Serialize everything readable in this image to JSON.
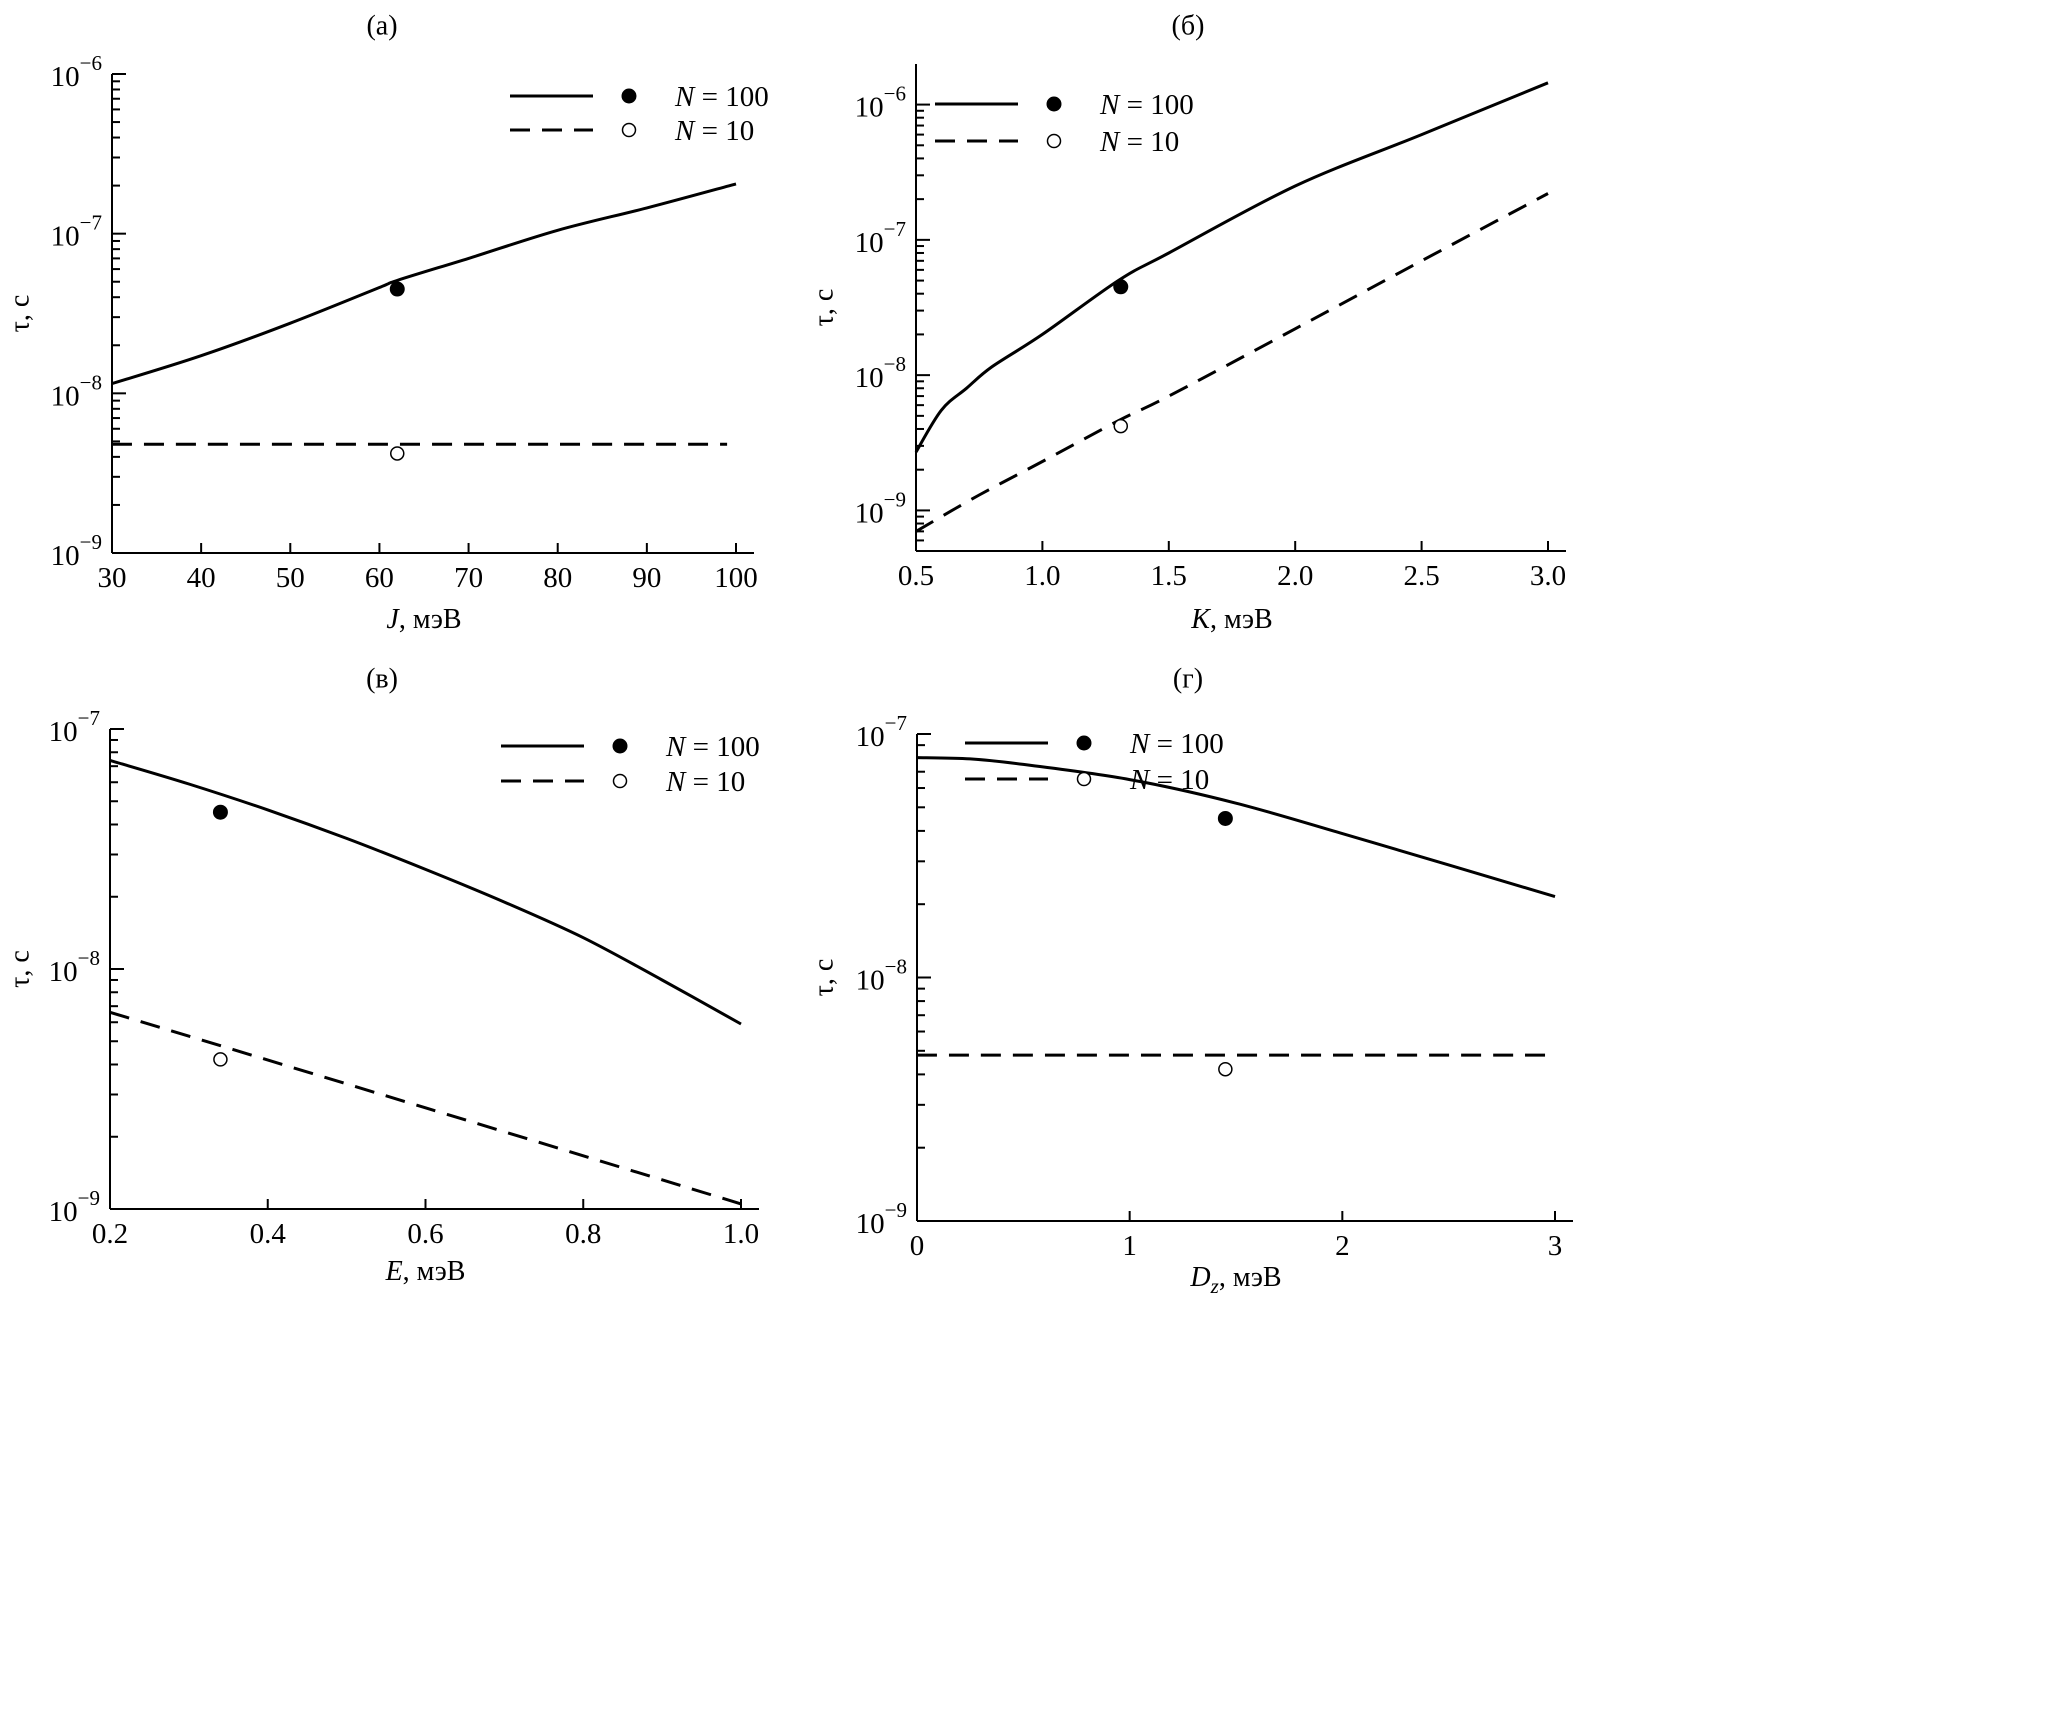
{
  "figure": {
    "legend": {
      "n100": "N = 100",
      "n10": "N = 10"
    },
    "unit_suffix": ", мэВ"
  },
  "chart_data": [
    {
      "id": "a",
      "type": "line",
      "panel_label": "(а)",
      "title": "",
      "xlabel": "J, мэВ",
      "xlabel_var": "J",
      "xlabel_sub": "",
      "ylabel": "τ, с",
      "xlim": [
        30,
        100
      ],
      "ylim_log10": [
        -9,
        -6
      ],
      "ylog": true,
      "xticks": [
        30,
        40,
        50,
        60,
        70,
        80,
        90,
        100
      ],
      "xtick_labels": [
        "30",
        "40",
        "50",
        "60",
        "70",
        "80",
        "90",
        "100"
      ],
      "ytick_exponents": [
        -9,
        -8,
        -7,
        -6
      ],
      "legend_position": "top-right",
      "series": [
        {
          "name": "N = 100",
          "style": "solid",
          "x": [
            30,
            40,
            50,
            60,
            62,
            70,
            80,
            90,
            100
          ],
          "y": [
            1.15e-08,
            1.72e-08,
            2.75e-08,
            4.6e-08,
            5.1e-08,
            7e-08,
            1.05e-07,
            1.45e-07,
            2.05e-07
          ]
        },
        {
          "name": "N = 10",
          "style": "dashed",
          "x": [
            30,
            99
          ],
          "y": [
            4.8e-09,
            4.8e-09
          ]
        }
      ],
      "points": [
        {
          "name": "N = 100",
          "marker": "filled",
          "x": 62,
          "y": 4.5e-08
        },
        {
          "name": "N = 10",
          "marker": "open",
          "x": 62,
          "y": 4.2e-09
        }
      ]
    },
    {
      "id": "b",
      "type": "line",
      "panel_label": "(б)",
      "title": "",
      "xlabel": "K, мэВ",
      "xlabel_var": "K",
      "xlabel_sub": "",
      "ylabel": "τ, с",
      "xlim": [
        0.5,
        3.0
      ],
      "ylim_log10": [
        -9.3,
        -5.7
      ],
      "ylog": true,
      "xticks": [
        0.5,
        1.0,
        1.5,
        2.0,
        2.5,
        3.0
      ],
      "xtick_labels": [
        "0.5",
        "1.0",
        "1.5",
        "2.0",
        "2.5",
        "3.0"
      ],
      "ytick_exponents": [
        -9,
        -8,
        -7,
        -6
      ],
      "legend_position": "top-left",
      "series": [
        {
          "name": "N = 100",
          "style": "solid",
          "x": [
            0.5,
            0.6,
            0.7,
            0.8,
            1.0,
            1.3,
            1.5,
            2.0,
            2.5,
            3.0
          ],
          "y": [
            2.7e-09,
            5.5e-09,
            8e-09,
            1.15e-08,
            2e-08,
            5e-08,
            8e-08,
            2.5e-07,
            6e-07,
            1.45e-06
          ]
        },
        {
          "name": "N = 10",
          "style": "dashed",
          "x": [
            0.5,
            0.75,
            1.0,
            1.3,
            1.5,
            2.0,
            2.5,
            3.0
          ],
          "y": [
            7e-10,
            1.3e-09,
            2.3e-09,
            4.6e-09,
            7e-09,
            2.2e-08,
            7e-08,
            2.2e-07
          ]
        }
      ],
      "points": [
        {
          "name": "N = 100",
          "marker": "filled",
          "x": 1.31,
          "y": 4.5e-08
        },
        {
          "name": "N = 10",
          "marker": "open",
          "x": 1.31,
          "y": 4.2e-09
        }
      ]
    },
    {
      "id": "c",
      "type": "line",
      "panel_label": "(в)",
      "title": "",
      "xlabel": "E, мэВ",
      "xlabel_var": "E",
      "xlabel_sub": "",
      "ylabel": "τ, с",
      "xlim": [
        0.2,
        1.0
      ],
      "ylim_log10": [
        -9,
        -7
      ],
      "ylog": true,
      "xticks": [
        0.2,
        0.4,
        0.6,
        0.8,
        1.0
      ],
      "xtick_labels": [
        "0.2",
        "0.4",
        "0.6",
        "0.8",
        "1.0"
      ],
      "ytick_exponents": [
        -9,
        -8,
        -7
      ],
      "legend_position": "top-right",
      "series": [
        {
          "name": "N = 100",
          "style": "solid",
          "x": [
            0.2,
            0.3,
            0.4,
            0.5,
            0.6,
            0.7,
            0.8,
            0.9,
            1.0
          ],
          "y": [
            7.4e-08,
            5.9e-08,
            4.6e-08,
            3.5e-08,
            2.6e-08,
            1.9e-08,
            1.35e-08,
            9e-09,
            5.9e-09
          ]
        },
        {
          "name": "N = 10",
          "style": "dashed",
          "x": [
            0.2,
            0.6,
            1.0
          ],
          "y": [
            6.6e-09,
            2.64e-09,
            1.05e-09
          ]
        }
      ],
      "points": [
        {
          "name": "N = 100",
          "marker": "filled",
          "x": 0.34,
          "y": 4.5e-08
        },
        {
          "name": "N = 10",
          "marker": "open",
          "x": 0.34,
          "y": 4.2e-09
        }
      ]
    },
    {
      "id": "d",
      "type": "line",
      "panel_label": "(г)",
      "title": "",
      "xlabel": "Dz, мэВ",
      "xlabel_var": "D",
      "xlabel_sub": "z",
      "ylabel": "τ, с",
      "xlim": [
        0,
        3
      ],
      "ylim_log10": [
        -9,
        -7
      ],
      "ylog": true,
      "xticks": [
        0,
        1,
        2,
        3
      ],
      "xtick_labels": [
        "0",
        "1",
        "2",
        "3"
      ],
      "ytick_exponents": [
        -9,
        -8,
        -7
      ],
      "legend_position": "top-right",
      "series": [
        {
          "name": "N = 100",
          "style": "solid",
          "x": [
            0,
            0.25,
            0.5,
            1.0,
            1.5,
            2.0,
            2.5,
            3.0
          ],
          "y": [
            8e-08,
            7.9e-08,
            7.5e-08,
            6.5e-08,
            5.2e-08,
            3.9e-08,
            2.9e-08,
            2.15e-08
          ]
        },
        {
          "name": "N = 10",
          "style": "dashed",
          "x": [
            0,
            3
          ],
          "y": [
            4.8e-09,
            4.8e-09
          ]
        }
      ],
      "points": [
        {
          "name": "N = 100",
          "marker": "filled",
          "x": 1.45,
          "y": 4.5e-08
        },
        {
          "name": "N = 10",
          "marker": "open",
          "x": 1.45,
          "y": 4.2e-09
        }
      ]
    }
  ]
}
